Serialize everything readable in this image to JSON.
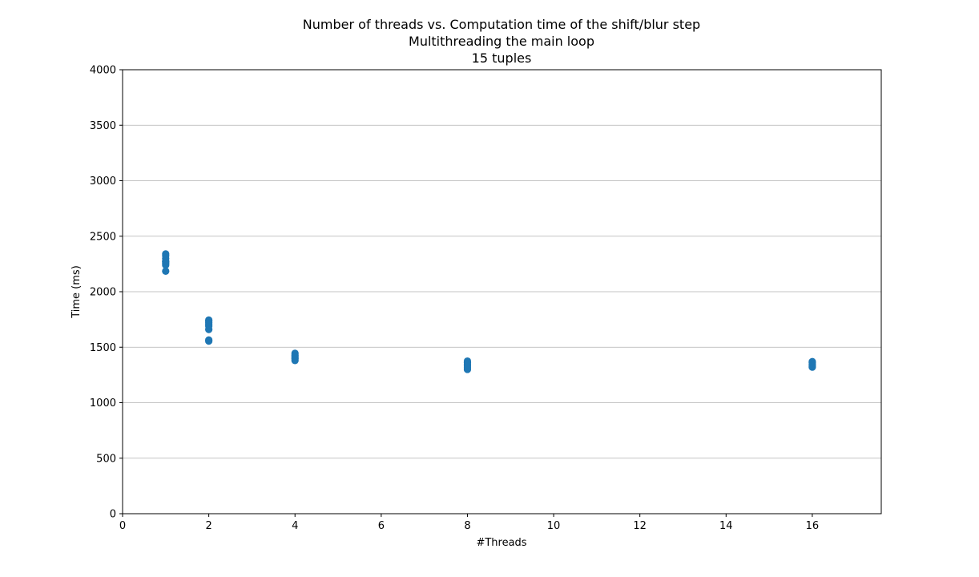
{
  "chart_data": {
    "type": "scatter",
    "title_lines": [
      "Number of threads vs. Computation time of the shift/blur step",
      "Multithreading the main loop",
      "15 tuples"
    ],
    "xlabel": "#Threads",
    "ylabel": "Time (ms)",
    "xlim": [
      0,
      17.6
    ],
    "ylim": [
      0,
      4000
    ],
    "xticks": [
      0,
      2,
      4,
      6,
      8,
      10,
      12,
      14,
      16
    ],
    "yticks": [
      0,
      500,
      1000,
      1500,
      2000,
      2500,
      3000,
      3500,
      4000
    ],
    "grid": "horizontal",
    "marker_color": "#1f77b4",
    "series": [
      {
        "points": [
          [
            1,
            2185
          ],
          [
            1,
            2240
          ],
          [
            1,
            2255
          ],
          [
            1,
            2270
          ],
          [
            1,
            2275
          ],
          [
            1,
            2300
          ],
          [
            1,
            2325
          ],
          [
            1,
            2340
          ],
          [
            2,
            1555
          ],
          [
            2,
            1565
          ],
          [
            2,
            1660
          ],
          [
            2,
            1690
          ],
          [
            2,
            1705
          ],
          [
            2,
            1720
          ],
          [
            2,
            1735
          ],
          [
            2,
            1745
          ],
          [
            4,
            1380
          ],
          [
            4,
            1395
          ],
          [
            4,
            1405
          ],
          [
            4,
            1420
          ],
          [
            4,
            1430
          ],
          [
            4,
            1445
          ],
          [
            8,
            1300
          ],
          [
            8,
            1315
          ],
          [
            8,
            1330
          ],
          [
            8,
            1345
          ],
          [
            8,
            1360
          ],
          [
            8,
            1375
          ],
          [
            16,
            1320
          ],
          [
            16,
            1330
          ],
          [
            16,
            1345
          ],
          [
            16,
            1360
          ],
          [
            16,
            1370
          ]
        ]
      }
    ]
  }
}
